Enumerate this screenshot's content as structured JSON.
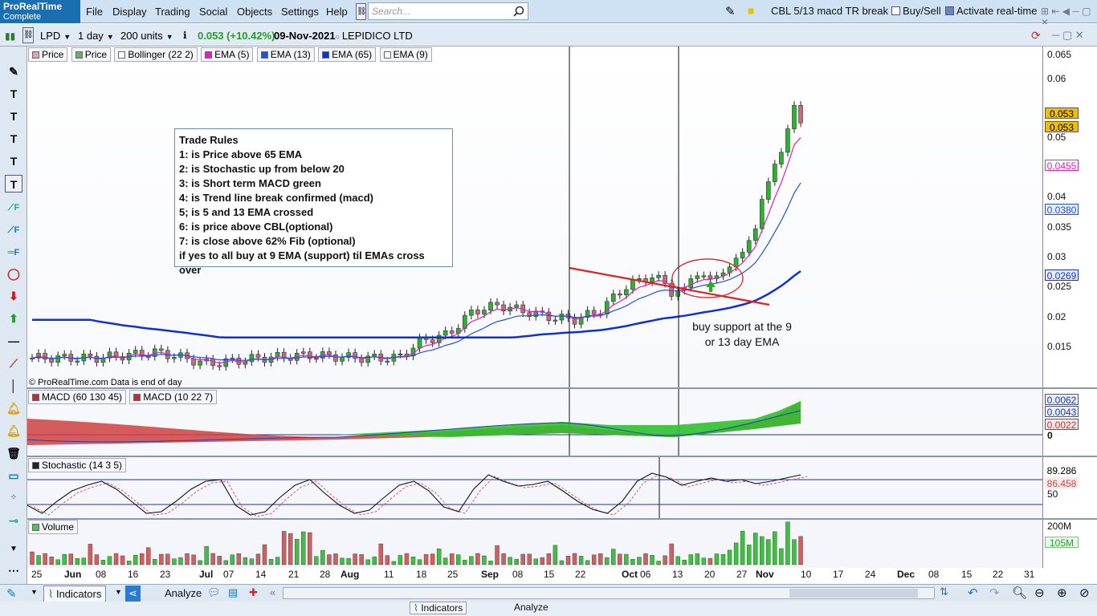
{
  "app": {
    "name": "ProRealTime",
    "edition": "Complete"
  },
  "menu": [
    "File",
    "Display",
    "Trading",
    "Social",
    "Objects",
    "Settings",
    "Help"
  ],
  "search": {
    "placeholder": "Search..."
  },
  "topbar": {
    "system": "CBL 5/13 macd TR break",
    "buysell": "Buy/Sell",
    "realtime": "Activate real-time"
  },
  "instrument": {
    "ticker": "LPD",
    "timeframe": "1 day",
    "units": "200 units",
    "change": "0.053 (+10.42%)",
    "date": "09-Nov-2021",
    "name": "LEPIDICO LTD"
  },
  "legend": [
    {
      "label": "Price",
      "color": "#e8a0a0"
    },
    {
      "label": "Price",
      "color": "#50c050"
    },
    {
      "label": "Bollinger (22 2)",
      "color": "#ffffff"
    },
    {
      "label": "EMA (5)",
      "color": "#e020c0"
    },
    {
      "label": "EMA (13)",
      "color": "#2050e0"
    },
    {
      "label": "EMA (65)",
      "color": "#1030d0"
    },
    {
      "label": "EMA (9)",
      "color": "#ffffff"
    }
  ],
  "rules": {
    "title": "Trade Rules",
    "lines": [
      "1: is Price above 65 EMA",
      "2: is Stochastic up from below 20",
      "3: is Short term MACD green",
      "4: is Trend line break confirmed (macd)",
      "5; is 5 and 13 EMA crossed",
      "6: is price above CBL(optional)",
      "7: is close above 62% Fib (optional)",
      "if yes to all buy at 9 EMA (support) til EMAs cross over"
    ]
  },
  "annotation": "buy support at the 9 or 13 day EMA",
  "copyright": "© ProRealTime.com  Data is end of day",
  "price_axis": [
    "0.065",
    "0.06",
    "0.05",
    "0.04",
    "0.035",
    "0.03",
    "0.025",
    "0.02",
    "0.015"
  ],
  "price_boxes": {
    "last1": "0.053",
    "last2": "0.053",
    "ema5": "0.0455",
    "ema13": "0.0380",
    "ema65": "0.0269"
  },
  "macd": {
    "legend1": "MACD (60 130 45)",
    "legend2": "MACD (10 22 7)",
    "v1": "0.0062",
    "v2": "0.0043",
    "v3": "0.0022",
    "zero": "0"
  },
  "stochastic": {
    "legend": "Stochastic (14 3 5)",
    "k": "89.286",
    "d": "86.458",
    "mid": "50"
  },
  "volume": {
    "legend": "Volume",
    "max": "200M",
    "val": "105M"
  },
  "xaxis": [
    "25",
    "Jun",
    "08",
    "16",
    "23",
    "Jul",
    "07",
    "14",
    "21",
    "28",
    "Aug",
    "11",
    "18",
    "25",
    "Sep",
    "08",
    "15",
    "22",
    "Oct",
    "06",
    "13",
    "20",
    "27",
    "Nov",
    "10",
    "17",
    "24",
    "Dec",
    "08",
    "15",
    "22",
    "31"
  ],
  "bottom": {
    "indicators": "Indicators",
    "analyze": "Analyze"
  },
  "colors": {
    "ema5": "#e020c0",
    "ema13": "#2050e0",
    "ema65": "#1030d0",
    "up": "#30b030",
    "down": "#a04040",
    "trend": "#e02020"
  }
}
